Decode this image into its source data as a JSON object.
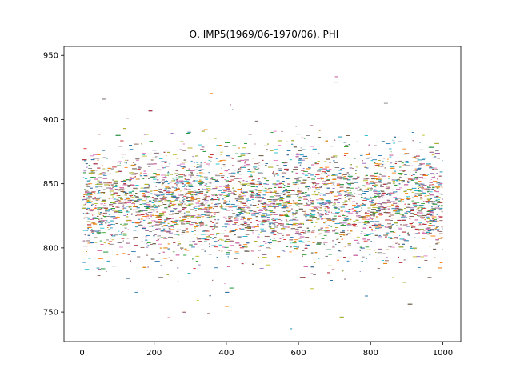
{
  "chart_data": {
    "type": "scatter",
    "title": "O, IMP5(1969/06-1970/06), PHI",
    "xlabel": "",
    "ylabel": "",
    "xlim": [
      -50,
      1050
    ],
    "ylim": [
      727,
      957
    ],
    "xticks": [
      0,
      200,
      400,
      600,
      800,
      1000
    ],
    "xtick_labels": [
      "0",
      "200",
      "400",
      "600",
      "800",
      "1000"
    ],
    "yticks": [
      750,
      800,
      850,
      900,
      950
    ],
    "ytick_labels": [
      "750",
      "800",
      "850",
      "900",
      "950"
    ],
    "grid": false,
    "legend": "none",
    "x_range_of_points": [
      0,
      1000
    ],
    "band_center": 835,
    "band_spread_1sigma": 20,
    "min_value_observed": 737,
    "max_value_observed": 942,
    "series_colors": [
      "#1f77b4",
      "#ff7f0e",
      "#2ca02c",
      "#d62728",
      "#9467bd",
      "#8c564b",
      "#e377c2",
      "#7f7f7f",
      "#bcbd22",
      "#17becf"
    ]
  }
}
